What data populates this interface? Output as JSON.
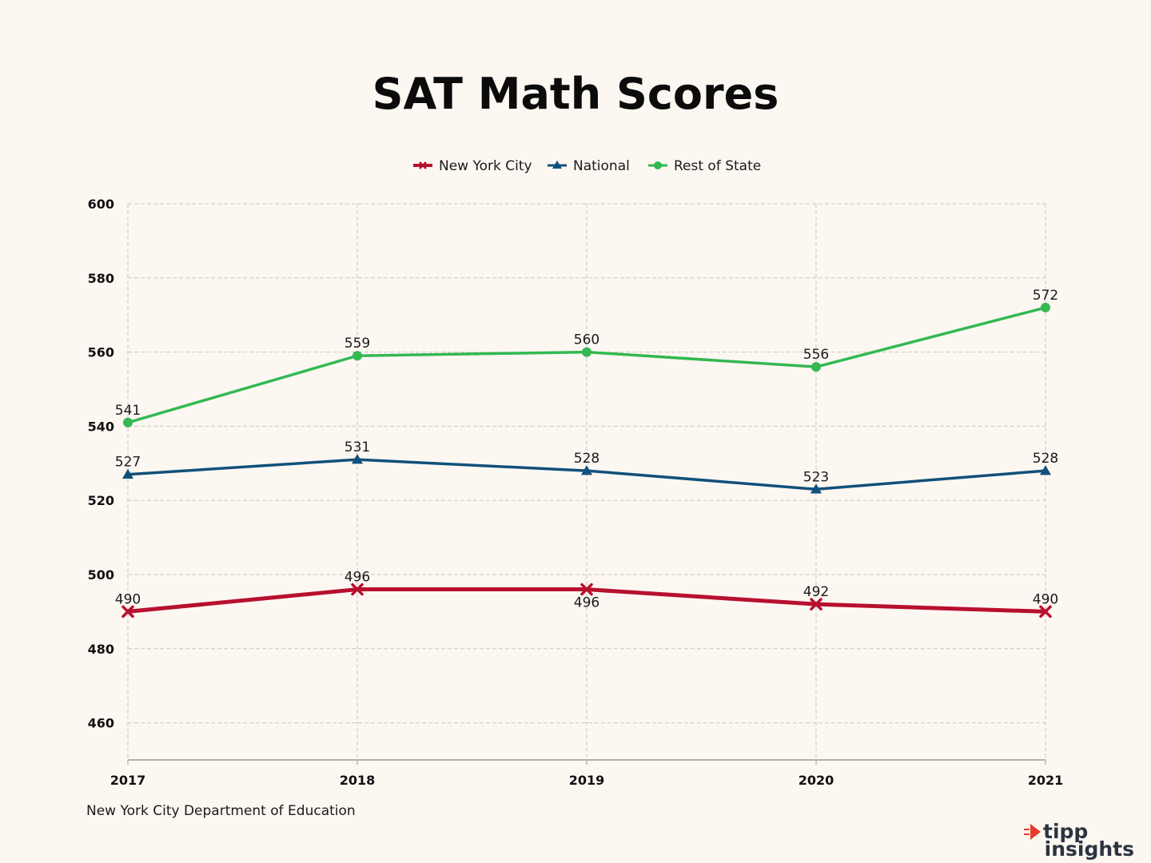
{
  "chart_data": {
    "type": "line",
    "title": "SAT Math Scores",
    "categories": [
      "2017",
      "2018",
      "2019",
      "2020",
      "2021"
    ],
    "series": [
      {
        "name": "New York City",
        "values": [
          490,
          496,
          496,
          492,
          490
        ],
        "color": "#b8102f",
        "marker": "x",
        "label_positions": [
          "above",
          "above",
          "below",
          "above",
          "above"
        ]
      },
      {
        "name": "National",
        "values": [
          527,
          531,
          528,
          523,
          528
        ],
        "color": "#12507a",
        "marker": "triangle",
        "label_positions": [
          "above",
          "above",
          "above",
          "above",
          "above"
        ]
      },
      {
        "name": "Rest of State",
        "values": [
          541,
          559,
          560,
          556,
          572
        ],
        "color": "#33b852",
        "marker": "circle",
        "label_positions": [
          "above",
          "above",
          "above",
          "above",
          "above"
        ]
      }
    ],
    "ylim": [
      450,
      600
    ],
    "yticks": [
      460,
      480,
      500,
      520,
      540,
      560,
      580,
      600
    ],
    "grid": true,
    "legend_position": "top-center",
    "xlabel": "",
    "ylabel": ""
  },
  "source": "New York City Department of Education",
  "brand": {
    "line1": "tipp",
    "line2": "insights",
    "accent_color": "#e23c2a"
  }
}
